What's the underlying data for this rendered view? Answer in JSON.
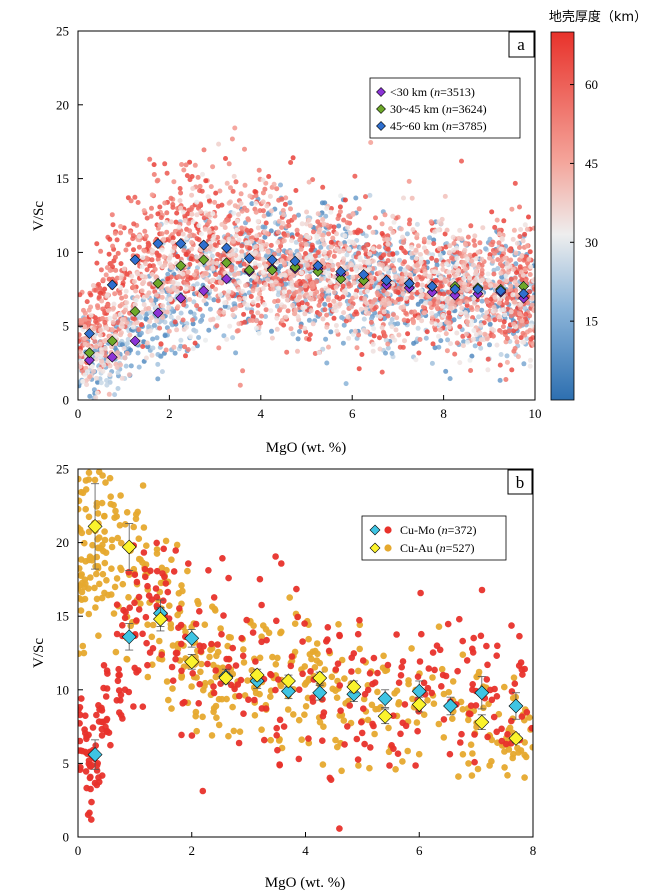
{
  "chart_data": [
    {
      "panel": "a",
      "type": "scatter",
      "xlabel": "MgO (wt. %)",
      "ylabel": "V/Sc",
      "xlim": [
        0,
        10
      ],
      "ylim": [
        0,
        25
      ],
      "x_ticks": [
        0,
        2,
        4,
        6,
        8,
        10
      ],
      "y_ticks": [
        0,
        5,
        10,
        15,
        20,
        25
      ],
      "grid": false,
      "legend_position": "top-right",
      "colorbar": {
        "title": "地壳厚度（km）",
        "range": [
          0,
          70
        ],
        "ticks": [
          15,
          30,
          45,
          60
        ],
        "colors": {
          "low": "#2d6fb0",
          "mid": "#eeeeee",
          "high": "#e8322b"
        }
      },
      "series": [
        {
          "label": "<30 km (",
          "n_label": "n",
          "n_value": "=3513)",
          "color": "#8b34d6",
          "marker": "diamond",
          "x": [
            0.25,
            0.75,
            1.25,
            1.75,
            2.25,
            2.75,
            3.25,
            3.75,
            4.25,
            4.75,
            5.25,
            5.75,
            6.25,
            6.75,
            7.25,
            7.75,
            8.25,
            8.75,
            9.25,
            9.75
          ],
          "y": [
            2.7,
            2.9,
            4.0,
            5.9,
            6.9,
            7.4,
            8.2,
            8.7,
            8.9,
            8.9,
            8.9,
            8.5,
            8.1,
            7.8,
            7.6,
            7.3,
            7.1,
            7.2,
            7.3,
            6.9
          ]
        },
        {
          "label": "30~45 km (",
          "n_label": "n",
          "n_value": "=3624)",
          "color": "#6da82a",
          "marker": "diamond",
          "x": [
            0.25,
            0.75,
            1.25,
            1.75,
            2.25,
            2.75,
            3.25,
            3.75,
            4.25,
            4.75,
            5.25,
            5.75,
            6.25,
            6.75,
            7.25,
            7.75,
            8.25,
            8.75,
            9.25,
            9.75
          ],
          "y": [
            3.2,
            4.0,
            6.0,
            7.9,
            9.1,
            9.5,
            9.3,
            8.8,
            8.8,
            9.0,
            8.7,
            8.2,
            8.1,
            8.1,
            7.9,
            7.7,
            7.7,
            7.6,
            7.5,
            7.7
          ]
        },
        {
          "label": "45~60 km (",
          "n_label": "n",
          "n_value": "=3785)",
          "color": "#2f6fcf",
          "marker": "diamond",
          "x": [
            0.25,
            0.75,
            1.25,
            1.75,
            2.25,
            2.75,
            3.25,
            3.75,
            4.25,
            4.75,
            5.25,
            5.75,
            6.25,
            6.75,
            7.25,
            7.75,
            8.25,
            8.75,
            9.25,
            9.75
          ],
          "y": [
            4.5,
            7.8,
            9.5,
            10.6,
            10.6,
            10.5,
            10.3,
            9.6,
            9.5,
            9.4,
            9.1,
            8.7,
            8.5,
            8.1,
            7.9,
            7.7,
            7.5,
            7.5,
            7.4,
            7.2
          ]
        }
      ]
    },
    {
      "panel": "b",
      "type": "scatter",
      "xlabel": "MgO (wt. %)",
      "ylabel": "V/Sc",
      "xlim": [
        0,
        8
      ],
      "ylim": [
        0,
        25
      ],
      "x_ticks": [
        0,
        2,
        4,
        6,
        8
      ],
      "y_ticks": [
        0,
        5,
        10,
        15,
        20,
        25
      ],
      "grid": false,
      "legend_position": "top-right",
      "series": [
        {
          "label": "Cu-Mo (",
          "n_label": "n",
          "n_value": "=372)",
          "point_color": "#e8322b",
          "mean_color": "#3ec4e3",
          "marker": "diamond",
          "x": [
            0.3,
            0.9,
            1.45,
            2.0,
            2.6,
            3.15,
            3.7,
            4.25,
            4.85,
            5.4,
            6.0,
            6.55,
            7.1,
            7.7
          ],
          "y": [
            5.6,
            13.6,
            15.2,
            13.5,
            10.9,
            10.6,
            9.9,
            9.8,
            9.7,
            9.4,
            9.9,
            8.9,
            9.8,
            8.9
          ],
          "err": [
            1.0,
            0.9,
            0.9,
            0.6,
            0.5,
            0.5,
            0.5,
            0.5,
            0.5,
            0.6,
            0.7,
            0.6,
            1.1,
            0.9
          ]
        },
        {
          "label": "Cu-Au (",
          "n_label": "n",
          "n_value": "=527)",
          "point_color": "#e6a92e",
          "mean_color": "#fbf32c",
          "marker": "diamond",
          "x": [
            0.3,
            0.9,
            1.45,
            2.0,
            2.6,
            3.15,
            3.7,
            4.25,
            4.85,
            5.4,
            6.0,
            7.1,
            7.7
          ],
          "y": [
            21.1,
            19.7,
            14.8,
            11.9,
            10.8,
            11.0,
            10.6,
            10.8,
            10.2,
            8.2,
            9.0,
            7.8,
            6.7
          ],
          "err": [
            2.9,
            1.6,
            0.8,
            0.5,
            0.4,
            0.4,
            0.4,
            0.4,
            0.4,
            0.5,
            0.5,
            0.5,
            0.3
          ]
        }
      ]
    }
  ]
}
